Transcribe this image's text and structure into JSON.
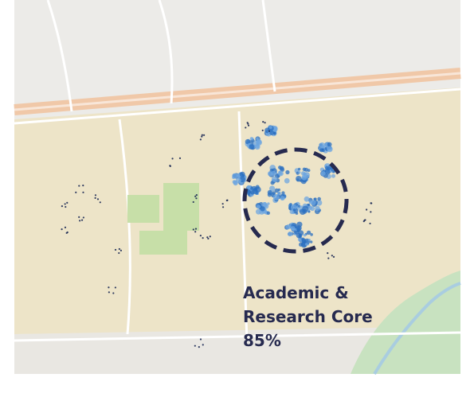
{
  "annotation": {
    "lines": [
      "Academic &",
      "Research Core",
      "85%"
    ]
  }
}
